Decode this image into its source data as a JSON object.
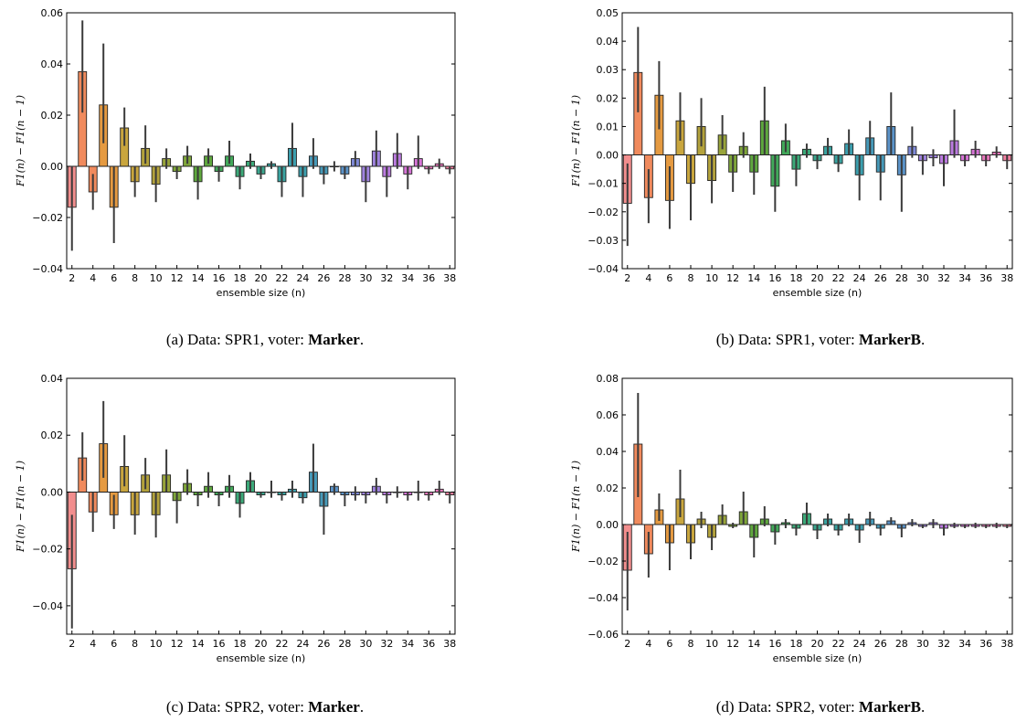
{
  "chart_data": [
    {
      "type": "bar",
      "xlabel": "ensemble size (n)",
      "ylabel": "F1(n) − F1(n − 1)",
      "ylim": [
        -0.04,
        0.06
      ],
      "yticks": [
        -0.04,
        -0.02,
        0.0,
        0.02,
        0.04,
        0.06
      ],
      "ytick_labels": [
        "−0.04",
        "−0.02",
        "0.00",
        "0.02",
        "0.04",
        "0.06"
      ],
      "x": [
        2,
        3,
        4,
        5,
        6,
        7,
        8,
        9,
        10,
        11,
        12,
        13,
        14,
        15,
        16,
        17,
        18,
        19,
        20,
        21,
        22,
        23,
        24,
        25,
        26,
        27,
        28,
        29,
        30,
        31,
        32,
        33,
        34,
        35,
        36,
        37,
        38
      ],
      "xtick_labels": [
        "2",
        "4",
        "6",
        "8",
        "10",
        "12",
        "14",
        "16",
        "18",
        "20",
        "22",
        "24",
        "26",
        "28",
        "30",
        "32",
        "34",
        "36",
        "38"
      ],
      "values": [
        -0.016,
        0.037,
        -0.01,
        0.024,
        -0.016,
        0.015,
        -0.006,
        0.007,
        -0.007,
        0.003,
        -0.002,
        0.004,
        -0.006,
        0.004,
        -0.002,
        0.004,
        -0.004,
        0.002,
        -0.003,
        0.001,
        -0.006,
        0.007,
        -0.004,
        0.004,
        -0.003,
        0.0,
        -0.003,
        0.003,
        -0.006,
        0.006,
        -0.004,
        0.005,
        -0.003,
        0.003,
        -0.001,
        0.001,
        -0.001
      ],
      "err_low": [
        -0.033,
        0.021,
        -0.017,
        0.009,
        -0.03,
        0.008,
        -0.012,
        0.001,
        -0.014,
        -0.001,
        -0.005,
        0.001,
        -0.013,
        0.001,
        -0.006,
        0.001,
        -0.009,
        -0.001,
        -0.005,
        -0.001,
        -0.012,
        0.0,
        -0.012,
        -0.001,
        -0.007,
        -0.002,
        -0.005,
        0.0,
        -0.014,
        0.0,
        -0.012,
        -0.001,
        -0.009,
        -0.001,
        -0.003,
        -0.001,
        -0.003
      ],
      "err_high": [
        0.0,
        0.057,
        -0.003,
        0.048,
        0.0,
        0.023,
        0.0,
        0.016,
        0.0,
        0.007,
        0.0,
        0.008,
        0.0,
        0.007,
        0.0,
        0.01,
        0.0,
        0.005,
        0.0,
        0.002,
        0.0,
        0.017,
        0.0,
        0.011,
        0.0,
        0.002,
        0.0,
        0.006,
        0.0,
        0.014,
        0.0,
        0.013,
        0.0,
        0.012,
        0.0,
        0.003,
        0.0
      ],
      "caption": {
        "prefix": "(a) Data: SPR1, voter: ",
        "voter": "Marker",
        "suffix": "."
      }
    },
    {
      "type": "bar",
      "xlabel": "ensemble size (n)",
      "ylabel": "F1(n) − F1(n − 1)",
      "ylim": [
        -0.04,
        0.05
      ],
      "yticks": [
        -0.04,
        -0.03,
        -0.02,
        -0.01,
        0.0,
        0.01,
        0.02,
        0.03,
        0.04,
        0.05
      ],
      "ytick_labels": [
        "−0.04",
        "−0.03",
        "−0.02",
        "−0.01",
        "0.00",
        "0.01",
        "0.02",
        "0.03",
        "0.04",
        "0.05"
      ],
      "x": [
        2,
        3,
        4,
        5,
        6,
        7,
        8,
        9,
        10,
        11,
        12,
        13,
        14,
        15,
        16,
        17,
        18,
        19,
        20,
        21,
        22,
        23,
        24,
        25,
        26,
        27,
        28,
        29,
        30,
        31,
        32,
        33,
        34,
        35,
        36,
        37,
        38
      ],
      "xtick_labels": [
        "2",
        "4",
        "6",
        "8",
        "10",
        "12",
        "14",
        "16",
        "18",
        "20",
        "22",
        "24",
        "26",
        "28",
        "30",
        "32",
        "34",
        "36",
        "38"
      ],
      "values": [
        -0.017,
        0.029,
        -0.015,
        0.021,
        -0.016,
        0.012,
        -0.01,
        0.01,
        -0.009,
        0.007,
        -0.006,
        0.003,
        -0.006,
        0.012,
        -0.011,
        0.005,
        -0.005,
        0.002,
        -0.002,
        0.003,
        -0.003,
        0.004,
        -0.007,
        0.006,
        -0.006,
        0.01,
        -0.007,
        0.003,
        -0.002,
        -0.001,
        -0.003,
        0.005,
        -0.002,
        0.002,
        -0.002,
        0.001,
        -0.002
      ],
      "err_low": [
        -0.032,
        0.015,
        -0.024,
        0.009,
        -0.026,
        0.005,
        -0.023,
        0.003,
        -0.017,
        0.002,
        -0.013,
        -0.001,
        -0.014,
        0.0,
        -0.02,
        0.001,
        -0.011,
        -0.001,
        -0.005,
        0.0,
        -0.006,
        0.0,
        -0.016,
        0.0,
        -0.016,
        0.0,
        -0.02,
        -0.001,
        -0.007,
        -0.004,
        -0.011,
        -0.001,
        -0.004,
        -0.001,
        -0.004,
        -0.001,
        -0.005
      ],
      "err_high": [
        -0.003,
        0.045,
        -0.005,
        0.033,
        -0.004,
        0.022,
        0.0,
        0.02,
        0.0,
        0.014,
        0.0,
        0.008,
        0.0,
        0.024,
        0.0,
        0.011,
        0.0,
        0.004,
        0.0,
        0.006,
        0.0,
        0.009,
        0.0,
        0.012,
        0.0,
        0.022,
        0.0,
        0.01,
        0.0,
        0.002,
        0.0,
        0.016,
        0.0,
        0.005,
        0.0,
        0.003,
        0.0
      ],
      "caption": {
        "prefix": "(b) Data: SPR1, voter: ",
        "voter": "MarkerB",
        "suffix": "."
      }
    },
    {
      "type": "bar",
      "xlabel": "ensemble size (n)",
      "ylabel": "F1(n) − F1(n − 1)",
      "ylim": [
        -0.05,
        0.04
      ],
      "yticks": [
        -0.04,
        -0.02,
        0.0,
        0.02,
        0.04
      ],
      "ytick_labels": [
        "−0.04",
        "−0.02",
        "0.00",
        "0.02",
        "0.04"
      ],
      "x": [
        2,
        3,
        4,
        5,
        6,
        7,
        8,
        9,
        10,
        11,
        12,
        13,
        14,
        15,
        16,
        17,
        18,
        19,
        20,
        21,
        22,
        23,
        24,
        25,
        26,
        27,
        28,
        29,
        30,
        31,
        32,
        33,
        34,
        35,
        36,
        37,
        38
      ],
      "xtick_labels": [
        "2",
        "4",
        "6",
        "8",
        "10",
        "12",
        "14",
        "16",
        "18",
        "20",
        "22",
        "24",
        "26",
        "28",
        "30",
        "32",
        "34",
        "36",
        "38"
      ],
      "values": [
        -0.027,
        0.012,
        -0.007,
        0.017,
        -0.008,
        0.009,
        -0.008,
        0.006,
        -0.008,
        0.006,
        -0.003,
        0.003,
        -0.001,
        0.002,
        -0.001,
        0.002,
        -0.004,
        0.004,
        -0.001,
        0.0,
        -0.001,
        0.001,
        -0.002,
        0.007,
        -0.005,
        0.002,
        -0.001,
        -0.001,
        -0.001,
        0.002,
        -0.001,
        0.0,
        -0.001,
        0.0,
        -0.001,
        0.001,
        -0.001
      ],
      "err_low": [
        -0.048,
        0.004,
        -0.014,
        0.005,
        -0.013,
        0.002,
        -0.015,
        0.001,
        -0.016,
        0.0,
        -0.011,
        -0.001,
        -0.005,
        -0.002,
        -0.005,
        -0.002,
        -0.009,
        0.0,
        -0.002,
        -0.002,
        -0.003,
        -0.002,
        -0.004,
        0.0,
        -0.015,
        -0.001,
        -0.005,
        -0.003,
        -0.004,
        -0.001,
        -0.004,
        -0.002,
        -0.003,
        -0.003,
        -0.003,
        -0.001,
        -0.004
      ],
      "err_high": [
        -0.008,
        0.021,
        0.0,
        0.032,
        -0.001,
        0.02,
        0.0,
        0.012,
        0.0,
        0.015,
        0.0,
        0.008,
        0.0,
        0.007,
        0.0,
        0.006,
        0.0,
        0.007,
        0.0,
        0.004,
        0.0,
        0.004,
        0.0,
        0.017,
        0.0,
        0.003,
        0.0,
        0.002,
        0.0,
        0.005,
        0.0,
        0.002,
        0.0,
        0.004,
        0.0,
        0.004,
        0.0
      ],
      "caption": {
        "prefix": "(c) Data: SPR2, voter: ",
        "voter": "Marker",
        "suffix": "."
      }
    },
    {
      "type": "bar",
      "xlabel": "ensemble size (n)",
      "ylabel": "F1(n) − F1(n − 1)",
      "ylim": [
        -0.06,
        0.08
      ],
      "yticks": [
        -0.06,
        -0.04,
        -0.02,
        0.0,
        0.02,
        0.04,
        0.06,
        0.08
      ],
      "ytick_labels": [
        "−0.06",
        "−0.04",
        "−0.02",
        "0.00",
        "0.02",
        "0.04",
        "0.06",
        "0.08"
      ],
      "x": [
        2,
        3,
        4,
        5,
        6,
        7,
        8,
        9,
        10,
        11,
        12,
        13,
        14,
        15,
        16,
        17,
        18,
        19,
        20,
        21,
        22,
        23,
        24,
        25,
        26,
        27,
        28,
        29,
        30,
        31,
        32,
        33,
        34,
        35,
        36,
        37,
        38
      ],
      "xtick_labels": [
        "2",
        "4",
        "6",
        "8",
        "10",
        "12",
        "14",
        "16",
        "18",
        "20",
        "22",
        "24",
        "26",
        "28",
        "30",
        "32",
        "34",
        "36",
        "38"
      ],
      "values": [
        -0.025,
        0.044,
        -0.016,
        0.008,
        -0.01,
        0.014,
        -0.01,
        0.003,
        -0.007,
        0.005,
        -0.001,
        0.007,
        -0.007,
        0.003,
        -0.004,
        0.001,
        -0.002,
        0.006,
        -0.003,
        0.003,
        -0.003,
        0.003,
        -0.003,
        0.003,
        -0.002,
        0.002,
        -0.002,
        0.001,
        -0.001,
        0.001,
        -0.002,
        -0.001,
        -0.001,
        -0.001,
        -0.001,
        -0.001,
        -0.001
      ],
      "err_low": [
        -0.047,
        0.015,
        -0.029,
        0.002,
        -0.025,
        0.004,
        -0.019,
        -0.002,
        -0.014,
        0.0,
        -0.002,
        0.0,
        -0.018,
        -0.001,
        -0.011,
        -0.002,
        -0.006,
        0.0,
        -0.008,
        -0.001,
        -0.006,
        -0.001,
        -0.01,
        -0.001,
        -0.006,
        0.0,
        -0.007,
        -0.001,
        -0.002,
        -0.002,
        -0.006,
        -0.002,
        -0.002,
        -0.002,
        -0.002,
        -0.002,
        -0.002
      ],
      "err_high": [
        -0.004,
        0.072,
        -0.004,
        0.017,
        0.0,
        0.03,
        0.0,
        0.007,
        0.0,
        0.011,
        0.001,
        0.018,
        0.0,
        0.01,
        0.0,
        0.003,
        0.0,
        0.012,
        0.0,
        0.006,
        0.0,
        0.006,
        0.0,
        0.007,
        0.0,
        0.004,
        0.0,
        0.003,
        0.0,
        0.003,
        0.0,
        0.001,
        0.0,
        0.001,
        0.0,
        0.001,
        0.0
      ],
      "caption": {
        "prefix": "(d) Data: SPR2, voter: ",
        "voter": "MarkerB",
        "suffix": "."
      }
    }
  ],
  "palette": [
    "#f28e8e",
    "#f08a5d",
    "#e59a41",
    "#c9a63e",
    "#b3a23c",
    "#98a43b",
    "#7fa63a",
    "#5fa83e",
    "#42a95a",
    "#3ca979",
    "#3ba68e",
    "#3aa3a0",
    "#3c9fae",
    "#479ab9",
    "#5b93c8",
    "#7f8ad8",
    "#9f83de",
    "#bb7bdf",
    "#d674d6",
    "#e777bb",
    "#f080a0"
  ]
}
